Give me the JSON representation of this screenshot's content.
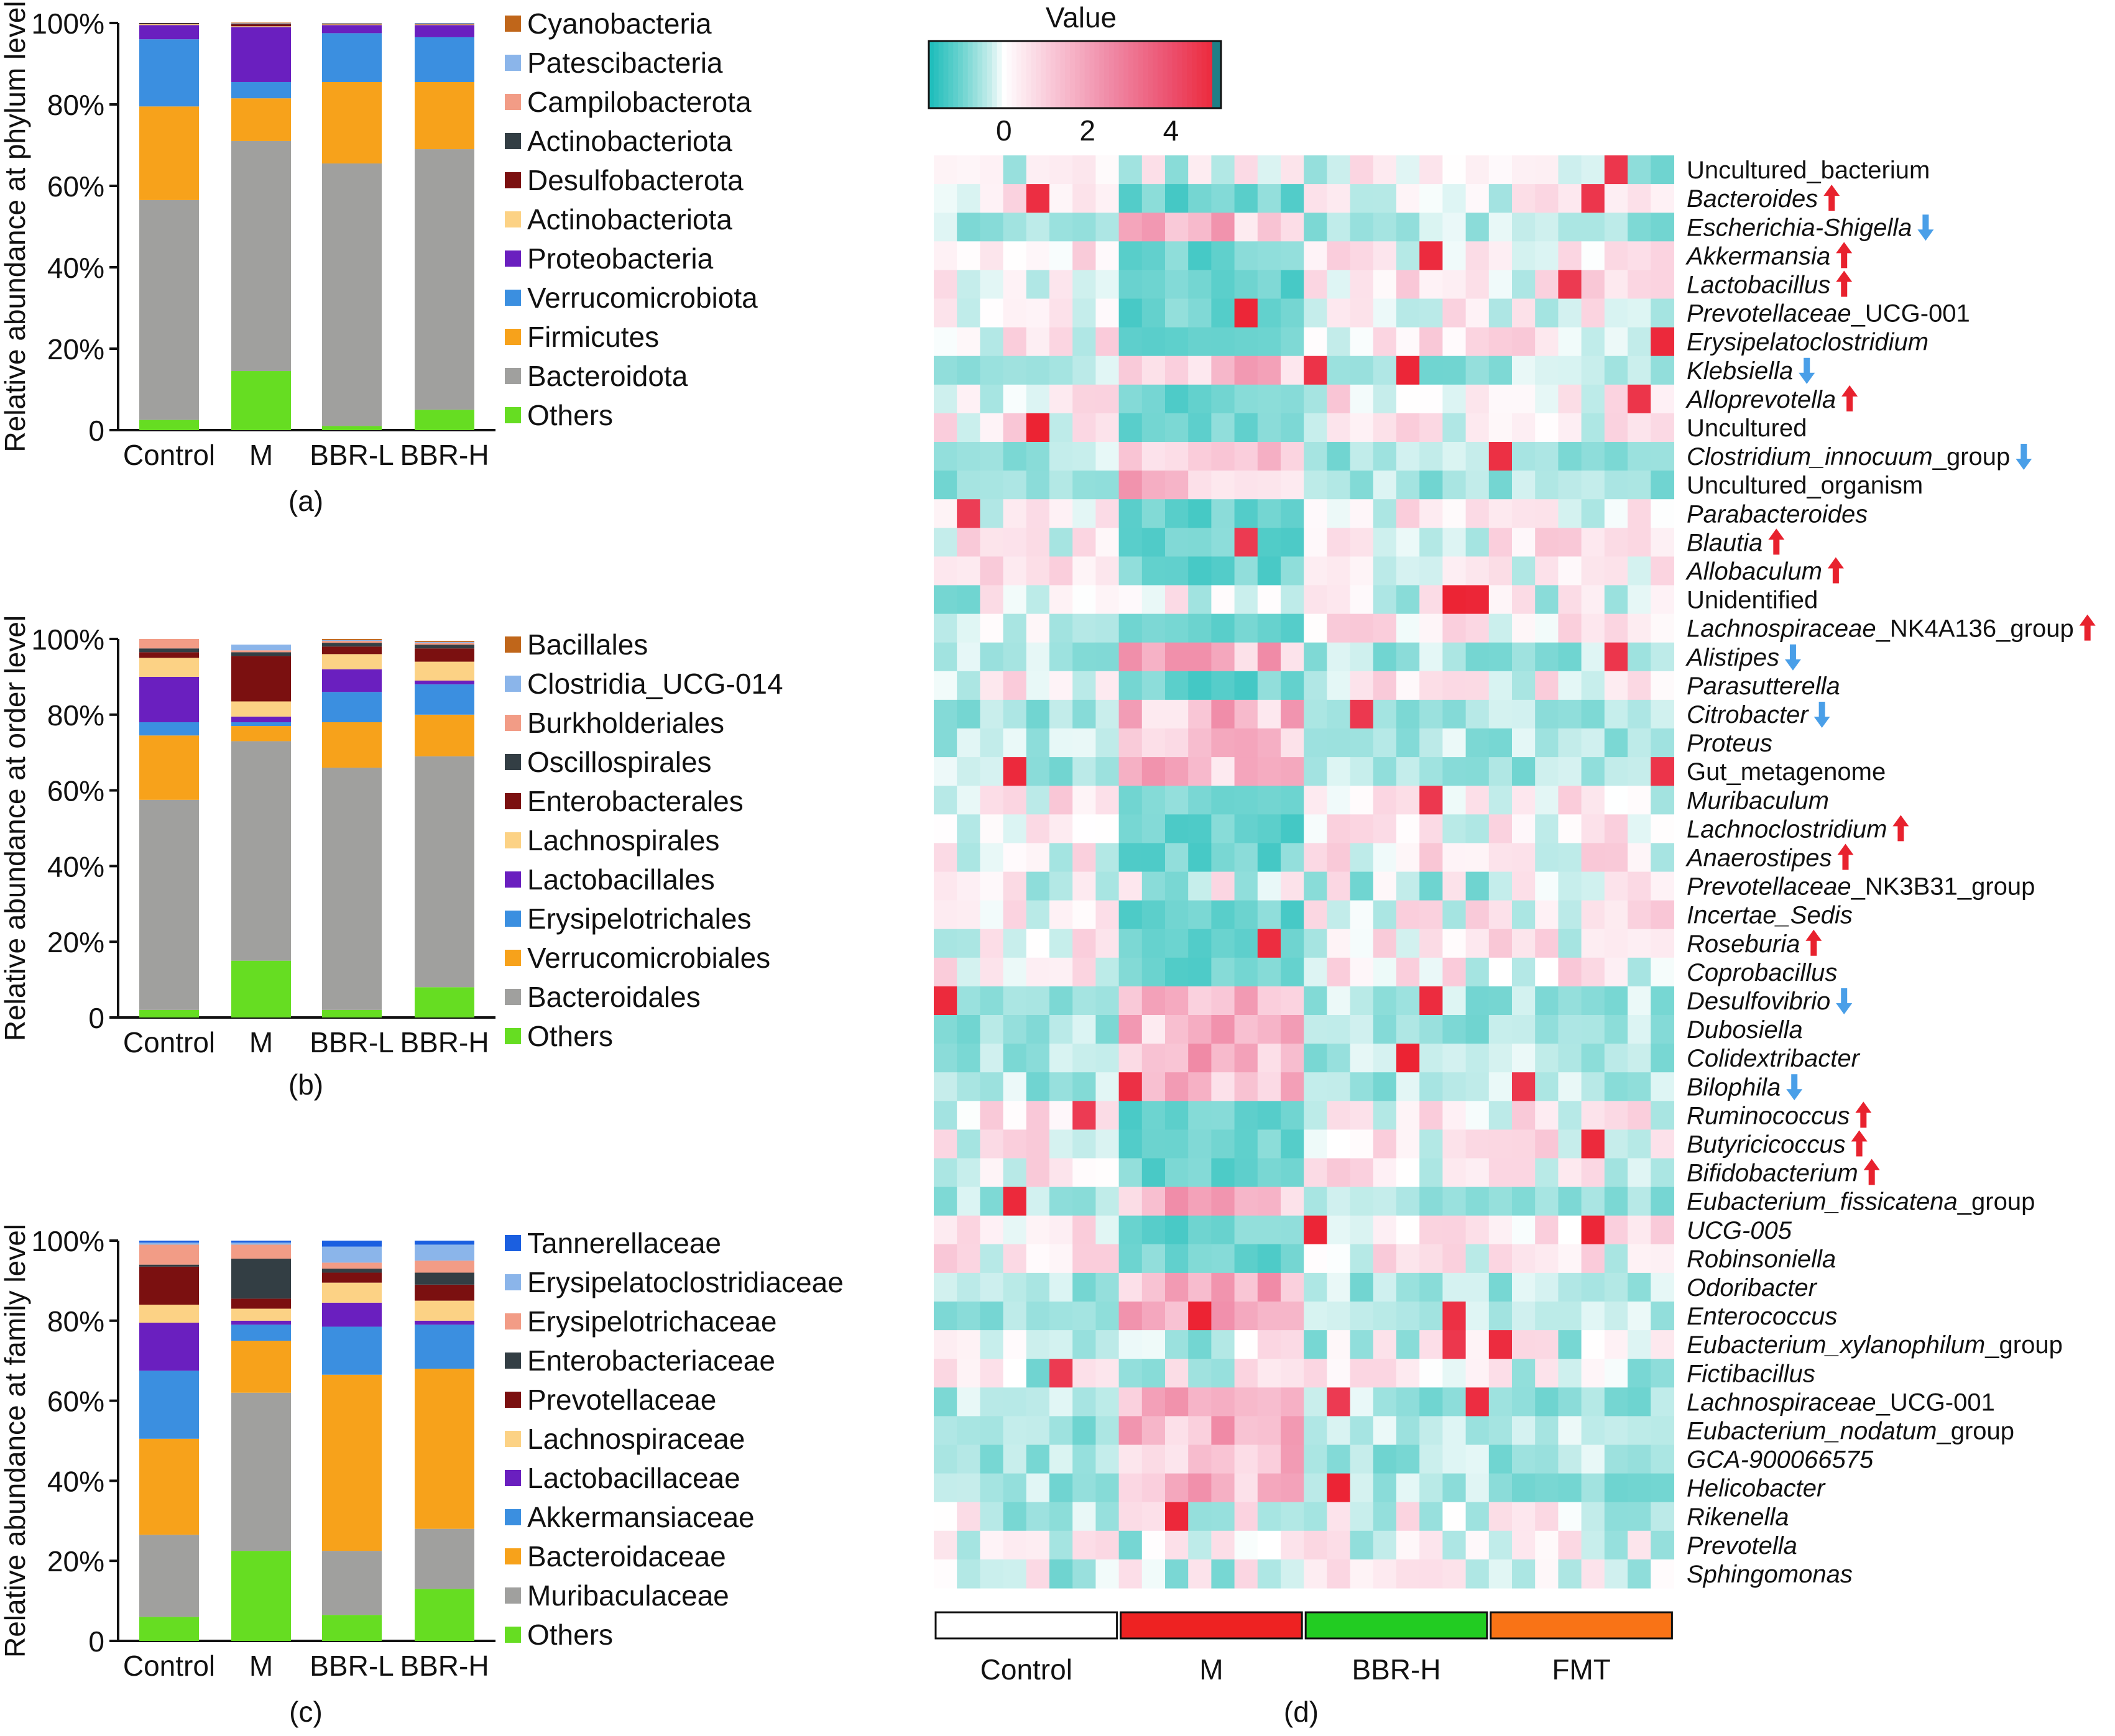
{
  "chart_data": [
    {
      "panel": "a",
      "type": "bar",
      "stacked": true,
      "caption": "(a)",
      "ylabel": "Relative abundance at phylum level",
      "ylim": [
        0,
        100
      ],
      "yticks": [
        "0",
        "20%",
        "40%",
        "60%",
        "80%",
        "100%"
      ],
      "categories": [
        "Control",
        "M",
        "BBR-L",
        "BBR-H"
      ],
      "series": [
        {
          "name": "Others",
          "color": "#66dd22",
          "values": [
            2.5,
            14.5,
            1,
            5
          ]
        },
        {
          "name": "Bacteroidota",
          "color": "#a0a09e",
          "values": [
            54,
            56.5,
            64.5,
            64
          ]
        },
        {
          "name": "Firmicutes",
          "color": "#f7a21b",
          "values": [
            23,
            10.5,
            20,
            16.5
          ]
        },
        {
          "name": "Verrucomicrobiota",
          "color": "#3b8fe0",
          "values": [
            16.5,
            4,
            12,
            11
          ]
        },
        {
          "name": "Proteobacteria",
          "color": "#6a1fbf",
          "values": [
            3.5,
            13.5,
            2,
            3
          ]
        },
        {
          "name": "Actinobacteriota",
          "color": "#fcd285",
          "values": [
            0.2,
            0.2,
            0.2,
            0.2
          ]
        },
        {
          "name": "Desulfobacterota",
          "color": "#7b1010",
          "values": [
            0.2,
            0.5,
            0.1,
            0.1
          ]
        },
        {
          "name": "Actinobacteriota",
          "color": "#333e44",
          "values": [
            0.1,
            0.1,
            0.1,
            0.1
          ]
        },
        {
          "name": "Campilobacterota",
          "color": "#f29c86",
          "values": [
            0,
            0.1,
            0,
            0
          ]
        },
        {
          "name": "Patescibacteria",
          "color": "#8bb5ea",
          "values": [
            0,
            0.1,
            0,
            0.1
          ]
        },
        {
          "name": "Cyanobacteria",
          "color": "#c0661a",
          "values": [
            0,
            0.1,
            0,
            0
          ]
        }
      ]
    },
    {
      "panel": "b",
      "type": "bar",
      "stacked": true,
      "caption": "(b)",
      "ylabel": "Relative abundance at order level",
      "ylim": [
        0,
        100
      ],
      "yticks": [
        "0",
        "20%",
        "40%",
        "60%",
        "80%",
        "100%"
      ],
      "categories": [
        "Control",
        "M",
        "BBR-L",
        "BBR-H"
      ],
      "series": [
        {
          "name": "Others",
          "color": "#66dd22",
          "values": [
            2,
            15,
            2,
            8
          ]
        },
        {
          "name": "Bacteroidales",
          "color": "#a0a09e",
          "values": [
            55.5,
            58,
            64,
            61
          ]
        },
        {
          "name": "Verrucomicrobiales",
          "color": "#f7a21b",
          "values": [
            17,
            4,
            12,
            11
          ]
        },
        {
          "name": "Erysipelotrichales",
          "color": "#3b8fe0",
          "values": [
            3.5,
            1,
            8,
            8
          ]
        },
        {
          "name": "Lactobacillales",
          "color": "#6a1fbf",
          "values": [
            12,
            1.5,
            6,
            1
          ]
        },
        {
          "name": "Lachnospirales",
          "color": "#fcd285",
          "values": [
            5,
            4,
            4,
            5
          ]
        },
        {
          "name": "Enterobacterales",
          "color": "#7b1010",
          "values": [
            1.5,
            12,
            2,
            3.5
          ]
        },
        {
          "name": "Oscillospirales",
          "color": "#333e44",
          "values": [
            1,
            1,
            1,
            1
          ]
        },
        {
          "name": "Burkholderiales",
          "color": "#f29c86",
          "values": [
            2.5,
            0.5,
            0.5,
            0.5
          ]
        },
        {
          "name": "Clostridia_UCG-014",
          "color": "#8bb5ea",
          "values": [
            0,
            1.5,
            0.2,
            0.2
          ]
        },
        {
          "name": "Bacillales",
          "color": "#c0661a",
          "values": [
            0,
            0,
            0.3,
            0.3
          ]
        }
      ]
    },
    {
      "panel": "c",
      "type": "bar",
      "stacked": true,
      "caption": "(c)",
      "ylabel": "Relative abundance at family level",
      "ylim": [
        0,
        100
      ],
      "yticks": [
        "0",
        "20%",
        "40%",
        "60%",
        "80%",
        "100%"
      ],
      "categories": [
        "Control",
        "M",
        "BBR-L",
        "BBR-H"
      ],
      "series": [
        {
          "name": "Others",
          "color": "#66dd22",
          "values": [
            6,
            22.5,
            6.5,
            13
          ]
        },
        {
          "name": "Muribaculaceae",
          "color": "#a0a09e",
          "values": [
            20.5,
            39.5,
            16,
            15
          ]
        },
        {
          "name": "Bacteroidaceae",
          "color": "#f7a21b",
          "values": [
            24,
            13,
            44,
            40
          ]
        },
        {
          "name": "Akkermansiaceae",
          "color": "#3b8fe0",
          "values": [
            17,
            4,
            12,
            11
          ]
        },
        {
          "name": "Lactobacillaceae",
          "color": "#6a1fbf",
          "values": [
            12,
            1,
            6,
            1
          ]
        },
        {
          "name": "Lachnospiraceae",
          "color": "#fcd285",
          "values": [
            4.5,
            3,
            5,
            5
          ]
        },
        {
          "name": "Prevotellaceae",
          "color": "#7b1010",
          "values": [
            9.5,
            2.5,
            2.5,
            4
          ]
        },
        {
          "name": "Enterobacteriaceae",
          "color": "#333e44",
          "values": [
            0.5,
            10,
            1,
            3
          ]
        },
        {
          "name": "Erysipelotrichaceae",
          "color": "#f29c86",
          "values": [
            5,
            3.5,
            1.5,
            3
          ]
        },
        {
          "name": "Erysipelatoclostridiaceae",
          "color": "#8bb5ea",
          "values": [
            0.5,
            0.5,
            4,
            4
          ]
        },
        {
          "name": "Tannerellaceae",
          "color": "#1b5fe0",
          "values": [
            0.5,
            0.5,
            1.5,
            1
          ]
        }
      ]
    },
    {
      "panel": "d",
      "type": "heatmap",
      "caption": "(d)",
      "colorbar": {
        "title": "Value",
        "ticks": [
          0,
          2,
          4
        ],
        "range": [
          -1.8,
          5.2
        ]
      },
      "groups": [
        {
          "name": "Control",
          "color": "#ffffff"
        },
        {
          "name": "M",
          "color": "#ee2222"
        },
        {
          "name": "BBR-H",
          "color": "#22cc22"
        },
        {
          "name": "FMT",
          "color": "#f97316"
        }
      ],
      "columns_per_group": 8,
      "rows": [
        {
          "label": "Uncultured_bacterium",
          "italic": false,
          "arrow": "",
          "pattern": "x"
        },
        {
          "label": "Bacteroides",
          "italic": true,
          "arrow": "up",
          "pattern": "Mlow"
        },
        {
          "label": "Escherichia-Shigella",
          "italic": true,
          "arrow": "down",
          "pattern": "Mhigh"
        },
        {
          "label": "Akkermansia",
          "italic": true,
          "arrow": "up",
          "pattern": "Mlow"
        },
        {
          "label": "Lactobacillus",
          "italic": true,
          "arrow": "up",
          "pattern": "Mlow"
        },
        {
          "label": "Prevotellaceae_UCG-001",
          "italicPart": "Prevotellaceae",
          "rest": "_UCG-001",
          "arrow": "",
          "pattern": "Mlow"
        },
        {
          "label": "Erysipelatoclostridium",
          "italic": true,
          "arrow": "",
          "pattern": "Mlow"
        },
        {
          "label": "Klebsiella",
          "italic": true,
          "arrow": "down",
          "pattern": "Mhigh"
        },
        {
          "label": "Alloprevotella",
          "italic": true,
          "arrow": "up",
          "pattern": "Mlow"
        },
        {
          "label": "Uncultured",
          "italic": false,
          "arrow": "",
          "pattern": "Mlow"
        },
        {
          "label": "Clostridium_innocuum_group",
          "italicPart": "Clostridium_innocuum",
          "rest": "_group",
          "arrow": "down",
          "pattern": "Mhigh"
        },
        {
          "label": "Uncultured_organism",
          "italic": false,
          "arrow": "",
          "pattern": "Mhigh"
        },
        {
          "label": "Parabacteroides",
          "italic": true,
          "arrow": "",
          "pattern": "Mlow"
        },
        {
          "label": "Blautia",
          "italic": true,
          "arrow": "up",
          "pattern": "Mlow"
        },
        {
          "label": "Allobaculum",
          "italic": true,
          "arrow": "up",
          "pattern": "Mlow"
        },
        {
          "label": "Unidentified",
          "italic": false,
          "arrow": "",
          "pattern": "x"
        },
        {
          "label": "Lachnospiraceae_NK4A136_group",
          "italicPart": "Lachnospiraceae",
          "rest": "_NK4A136_group",
          "arrow": "up",
          "pattern": "Mlow"
        },
        {
          "label": "Alistipes",
          "italic": true,
          "arrow": "down",
          "pattern": "Mhigh"
        },
        {
          "label": "Parasutterella",
          "italic": true,
          "arrow": "",
          "pattern": "Mlow"
        },
        {
          "label": "Citrobacter",
          "italic": true,
          "arrow": "down",
          "pattern": "Mhigh"
        },
        {
          "label": "Proteus",
          "italic": true,
          "arrow": "",
          "pattern": "Mhigh"
        },
        {
          "label": "Gut_metagenome",
          "italic": false,
          "arrow": "",
          "pattern": "Mhigh"
        },
        {
          "label": "Muribaculum",
          "italic": true,
          "arrow": "",
          "pattern": "Mlow"
        },
        {
          "label": "Lachnoclostridium",
          "italic": true,
          "arrow": "up",
          "pattern": "Mlow"
        },
        {
          "label": "Anaerostipes",
          "italic": true,
          "arrow": "up",
          "pattern": "Mlow"
        },
        {
          "label": "Prevotellaceae_NK3B31_group",
          "italicPart": "Prevotellaceae",
          "rest": "_NK3B31_group",
          "arrow": "",
          "pattern": "x"
        },
        {
          "label": "Incertae_Sedis",
          "italic": true,
          "arrow": "",
          "pattern": "Mlow"
        },
        {
          "label": "Roseburia",
          "italic": true,
          "arrow": "up",
          "pattern": "Mlow"
        },
        {
          "label": "Coprobacillus",
          "italic": true,
          "arrow": "",
          "pattern": "Mlow"
        },
        {
          "label": "Desulfovibrio",
          "italic": true,
          "arrow": "down",
          "pattern": "Mhigh"
        },
        {
          "label": "Dubosiella",
          "italic": true,
          "arrow": "",
          "pattern": "Mhigh"
        },
        {
          "label": "Colidextribacter",
          "italic": true,
          "arrow": "",
          "pattern": "Mhigh"
        },
        {
          "label": "Bilophila",
          "italic": true,
          "arrow": "down",
          "pattern": "Mhigh"
        },
        {
          "label": "Ruminococcus",
          "italic": true,
          "arrow": "up",
          "pattern": "Mlow"
        },
        {
          "label": "Butyricicoccus",
          "italic": true,
          "arrow": "up",
          "pattern": "Mlow"
        },
        {
          "label": "Bifidobacterium",
          "italic": true,
          "arrow": "up",
          "pattern": "Mlow"
        },
        {
          "label": "Eubacterium_fissicatena_group",
          "italicPart": "Eubacterium_fissicatena",
          "rest": "_group",
          "arrow": "",
          "pattern": "Mhigh"
        },
        {
          "label": "UCG-005",
          "italic": true,
          "arrow": "",
          "pattern": "Mlow"
        },
        {
          "label": "Robinsoniella",
          "italic": true,
          "arrow": "",
          "pattern": "Mlow"
        },
        {
          "label": "Odoribacter",
          "italic": true,
          "arrow": "",
          "pattern": "Mhigh"
        },
        {
          "label": "Enterococcus",
          "italic": true,
          "arrow": "",
          "pattern": "Mhigh"
        },
        {
          "label": "Eubacterium_xylanophilum_group",
          "italicPart": "Eubacterium_xylanophilum",
          "rest": "_group",
          "arrow": "",
          "pattern": "x"
        },
        {
          "label": "Fictibacillus",
          "italic": true,
          "arrow": "",
          "pattern": "x"
        },
        {
          "label": "Lachnospiraceae_UCG-001",
          "italicPart": "Lachnospiraceae",
          "rest": "_UCG-001",
          "arrow": "",
          "pattern": "Mhigh"
        },
        {
          "label": "Eubacterium_nodatum_group",
          "italicPart": "Eubacterium_nodatum",
          "rest": "_group",
          "arrow": "",
          "pattern": "Mhigh"
        },
        {
          "label": "GCA-900066575",
          "italic": true,
          "arrow": "",
          "pattern": "Mhigh"
        },
        {
          "label": "Helicobacter",
          "italic": true,
          "arrow": "",
          "pattern": "Mhigh"
        },
        {
          "label": "Rikenella",
          "italic": true,
          "arrow": "",
          "pattern": "x"
        },
        {
          "label": "Prevotella",
          "italic": true,
          "arrow": "",
          "pattern": "x"
        },
        {
          "label": "Sphingomonas",
          "italic": true,
          "arrow": "",
          "pattern": "x"
        }
      ]
    }
  ]
}
